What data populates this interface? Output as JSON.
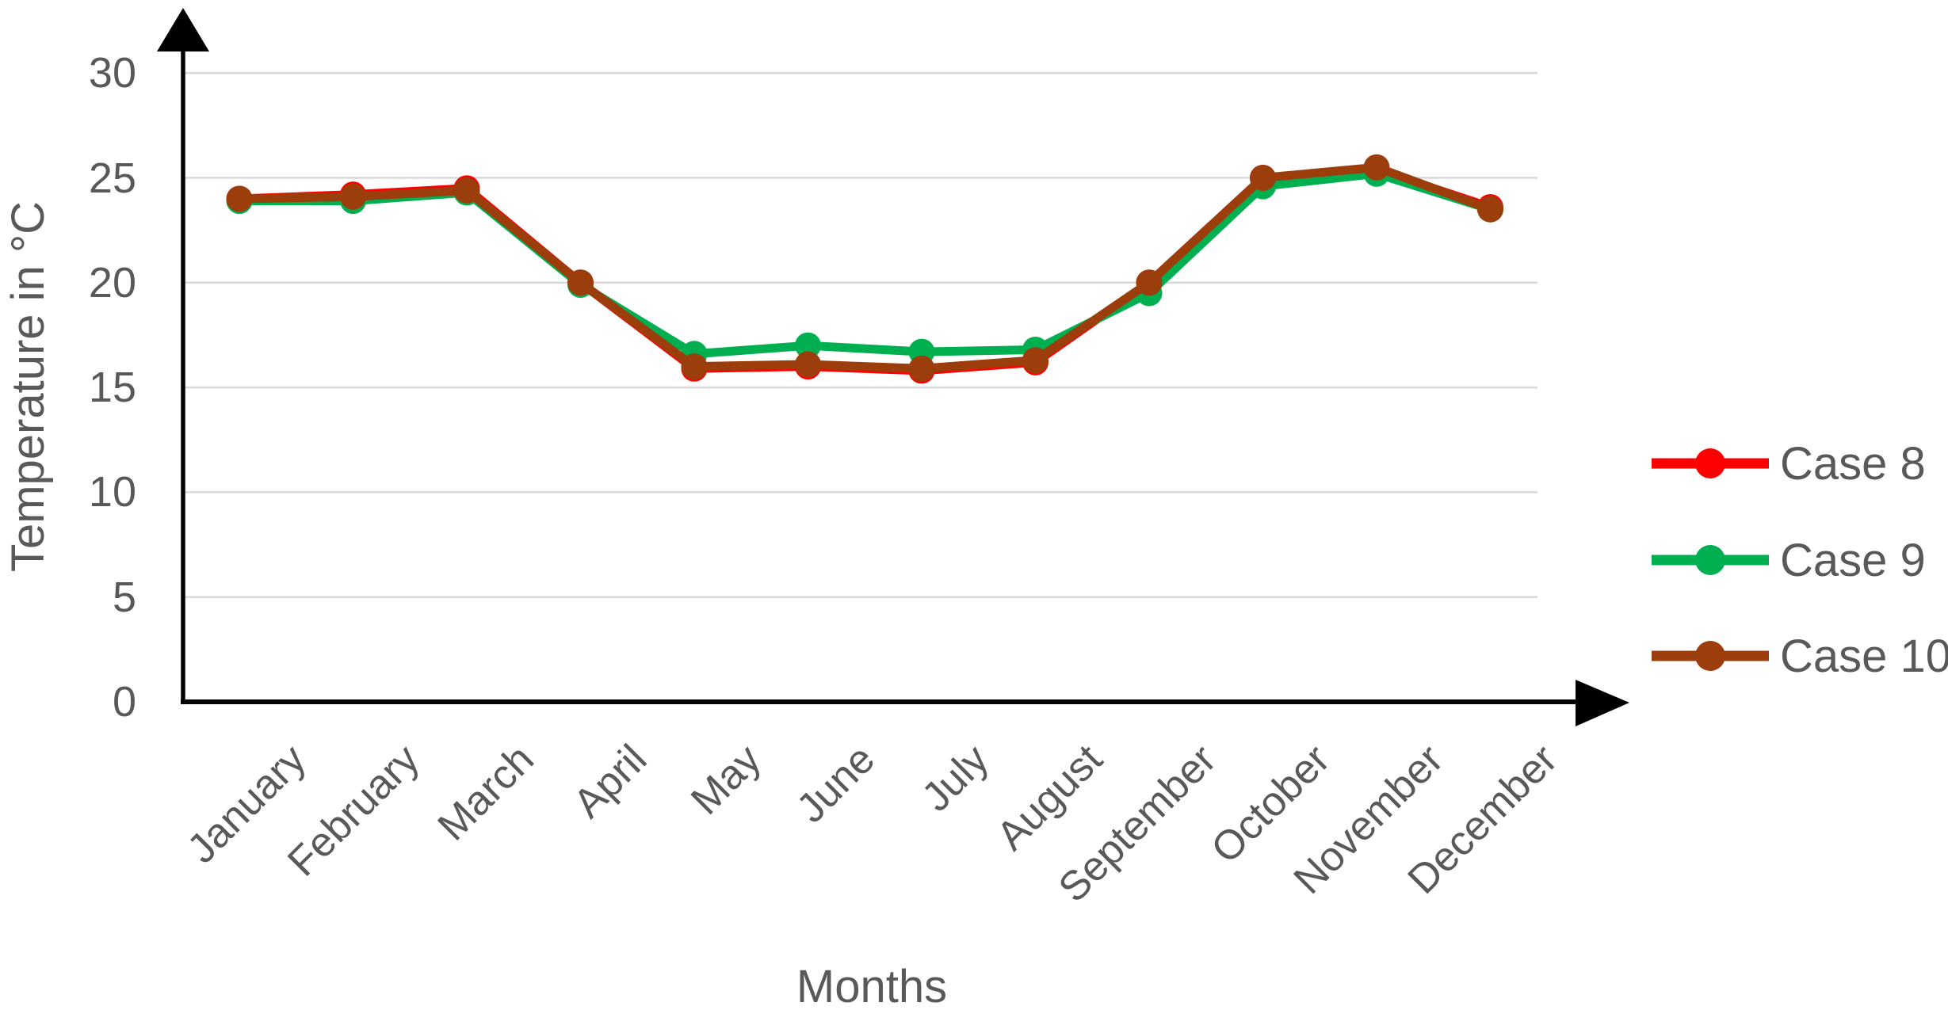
{
  "chart_data": {
    "type": "line",
    "title": "",
    "xlabel": "Months",
    "ylabel": "Temperature in °C",
    "categories": [
      "January",
      "February",
      "March",
      "April",
      "May",
      "June",
      "July",
      "August",
      "September",
      "October",
      "November",
      "December"
    ],
    "series": [
      {
        "name": "Case 8",
        "color": "#FF0000",
        "values": [
          24.0,
          24.2,
          24.5,
          20.0,
          15.9,
          16.0,
          15.8,
          16.2,
          20.0,
          25.0,
          25.4,
          23.6
        ]
      },
      {
        "name": "Case 9",
        "color": "#00B050",
        "values": [
          23.9,
          23.9,
          24.3,
          19.9,
          16.6,
          17.0,
          16.7,
          16.8,
          19.5,
          24.6,
          25.2,
          23.5
        ]
      },
      {
        "name": "Case 10",
        "color": "#9C3D0C",
        "values": [
          24.0,
          24.1,
          24.4,
          20.0,
          16.0,
          16.1,
          15.9,
          16.3,
          20.0,
          25.0,
          25.5,
          23.5
        ]
      }
    ],
    "ylim": [
      0,
      30
    ],
    "yticks": [
      0,
      5,
      10,
      15,
      20,
      25,
      30
    ],
    "grid": "horizontal",
    "legend_position": "right",
    "axis_arrows": true
  },
  "colors": {
    "text": "#595959",
    "axis": "#000000",
    "gridline": "#D9D9D9",
    "background": "#FFFFFF"
  }
}
